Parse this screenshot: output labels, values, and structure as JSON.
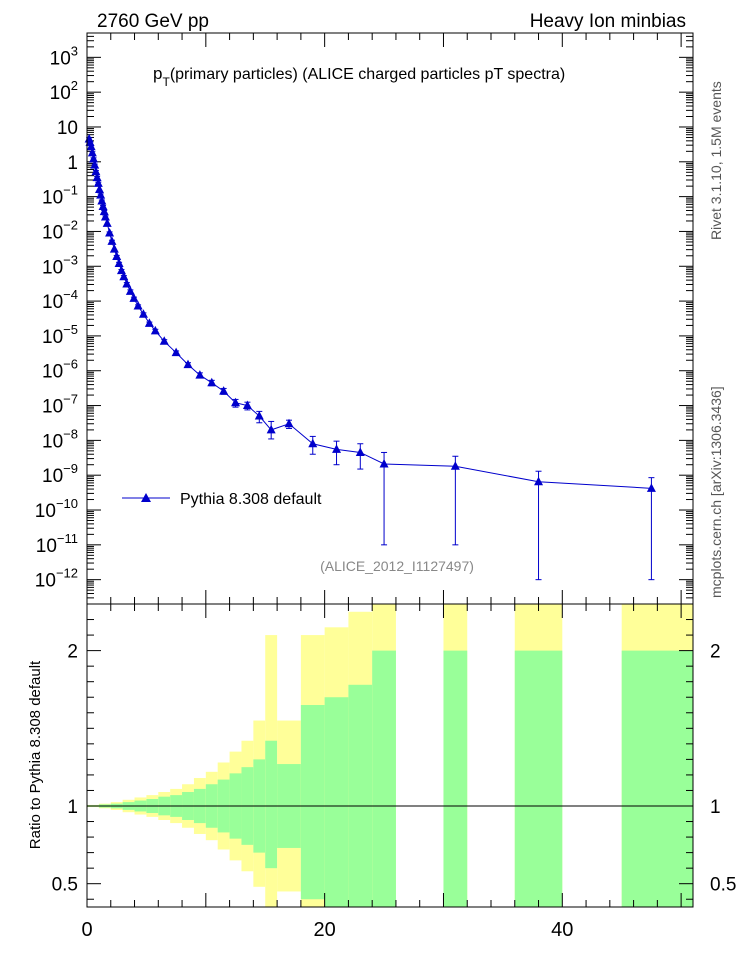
{
  "header": {
    "left_label": "2760 GeV pp",
    "right_label": "Heavy Ion minbias"
  },
  "side_labels": {
    "rivet": "Rivet 3.1.10,  1.5M events",
    "source": "mcplots.cern.ch [arXiv:1306.3436]"
  },
  "chart_data": [
    {
      "type": "line",
      "title_p": "p",
      "title_sub": "T",
      "title_rest": "(primary particles) (ALICE charged particles pT spectra)",
      "analysis_label": "(ALICE_2012_I1127497)",
      "y_scale": "log",
      "xlim": [
        0,
        51
      ],
      "ylim": [
        2e-13,
        5000
      ],
      "legend_position": "lower-left",
      "series": [
        {
          "name": "Pythia 8.308 default",
          "color": "#0000cc",
          "marker": "triangle",
          "points": [
            {
              "x": 0.18,
              "y": 4.5,
              "err": [
                0.4,
                0.4
              ]
            },
            {
              "x": 0.25,
              "y": 3.6,
              "err": [
                0.3,
                0.3
              ]
            },
            {
              "x": 0.35,
              "y": 2.7,
              "err": [
                0.2,
                0.2
              ]
            },
            {
              "x": 0.45,
              "y": 1.8,
              "err": [
                0.15,
                0.15
              ]
            },
            {
              "x": 0.55,
              "y": 1.2,
              "err": [
                0.1,
                0.1
              ]
            },
            {
              "x": 0.65,
              "y": 0.8,
              "err": [
                0.06,
                0.06
              ]
            },
            {
              "x": 0.75,
              "y": 0.52,
              "err": [
                0.04,
                0.04
              ]
            },
            {
              "x": 0.85,
              "y": 0.35,
              "err": [
                0.03,
                0.03
              ]
            },
            {
              "x": 0.95,
              "y": 0.24,
              "err": [
                0.02,
                0.02
              ]
            },
            {
              "x": 1.05,
              "y": 0.16,
              "err": [
                0.01,
                0.01
              ]
            },
            {
              "x": 1.15,
              "y": 0.11,
              "err": [
                0.01,
                0.01
              ]
            },
            {
              "x": 1.25,
              "y": 0.075,
              "err": [
                0.005,
                0.005
              ]
            },
            {
              "x": 1.35,
              "y": 0.052,
              "err": [
                0.004,
                0.004
              ]
            },
            {
              "x": 1.45,
              "y": 0.037,
              "err": [
                0.003,
                0.003
              ]
            },
            {
              "x": 1.55,
              "y": 0.026,
              "err": [
                0.002,
                0.002
              ]
            },
            {
              "x": 1.7,
              "y": 0.017,
              "err": [
                0.001,
                0.001
              ]
            },
            {
              "x": 1.9,
              "y": 0.009,
              "err": [
                0.0007,
                0.0007
              ]
            },
            {
              "x": 2.1,
              "y": 0.0052,
              "err": [
                0.0004,
                0.0004
              ]
            },
            {
              "x": 2.3,
              "y": 0.0031,
              "err": [
                0.0002,
                0.0002
              ]
            },
            {
              "x": 2.5,
              "y": 0.0019,
              "err": [
                0.00015,
                0.00015
              ]
            },
            {
              "x": 2.7,
              "y": 0.0012,
              "err": [
                0.0001,
                0.0001
              ]
            },
            {
              "x": 2.9,
              "y": 0.00075,
              "err": [
                6e-05,
                6e-05
              ]
            },
            {
              "x": 3.1,
              "y": 0.0005,
              "err": [
                4e-05,
                4e-05
              ]
            },
            {
              "x": 3.35,
              "y": 0.00031,
              "err": [
                3e-05,
                3e-05
              ]
            },
            {
              "x": 3.65,
              "y": 0.00019,
              "err": [
                2e-05,
                2e-05
              ]
            },
            {
              "x": 3.95,
              "y": 0.00012,
              "err": [
                1e-05,
                1e-05
              ]
            },
            {
              "x": 4.3,
              "y": 7.2e-05,
              "err": [
                6e-06,
                6e-06
              ]
            },
            {
              "x": 4.75,
              "y": 4.2e-05,
              "err": [
                4e-06,
                4e-06
              ]
            },
            {
              "x": 5.25,
              "y": 2.3e-05,
              "err": [
                2e-06,
                2e-06
              ]
            },
            {
              "x": 5.75,
              "y": 1.4e-05,
              "err": [
                1.5e-06,
                1.5e-06
              ]
            },
            {
              "x": 6.5,
              "y": 7e-06,
              "err": [
                8e-07,
                8e-07
              ]
            },
            {
              "x": 7.5,
              "y": 3.3e-06,
              "err": [
                4e-07,
                4e-07
              ]
            },
            {
              "x": 8.5,
              "y": 1.5e-06,
              "err": [
                2e-07,
                2e-07
              ]
            },
            {
              "x": 9.5,
              "y": 7.5e-07,
              "err": [
                1.2e-07,
                1.2e-07
              ]
            },
            {
              "x": 10.5,
              "y": 4.5e-07,
              "err": [
                8e-08,
                8e-08
              ]
            },
            {
              "x": 11.5,
              "y": 2.6e-07,
              "err": [
                5e-08,
                5e-08
              ]
            },
            {
              "x": 12.5,
              "y": 1.2e-07,
              "err": [
                3e-08,
                3e-08
              ]
            },
            {
              "x": 13.5,
              "y": 1e-07,
              "err": [
                2.5e-08,
                2.5e-08
              ]
            },
            {
              "x": 14.5,
              "y": 5e-08,
              "err": [
                1.8e-08,
                1.8e-08
              ]
            },
            {
              "x": 15.5,
              "y": 2e-08,
              "err": [
                9e-09,
                1.5e-08
              ]
            },
            {
              "x": 17.0,
              "y": 3e-08,
              "err": [
                8e-09,
                8e-09
              ]
            },
            {
              "x": 19.0,
              "y": 8e-09,
              "err": [
                4e-09,
                5e-09
              ]
            },
            {
              "x": 21.0,
              "y": 5.5e-09,
              "err": [
                3.5e-09,
                4e-09
              ]
            },
            {
              "x": 23.0,
              "y": 4.5e-09,
              "err": [
                3e-09,
                3.5e-09
              ]
            },
            {
              "x": 25.0,
              "y": 2.1e-09,
              "err": [
                2.09e-09,
                2.4e-09
              ]
            },
            {
              "x": 31.0,
              "y": 1.8e-09,
              "err": [
                1.79e-09,
                1.7e-09
              ]
            },
            {
              "x": 38.0,
              "y": 6.5e-10,
              "err": [
                6.49e-10,
                6.5e-10
              ]
            },
            {
              "x": 47.5,
              "y": 4.2e-10,
              "err": [
                4.19e-10,
                4.3e-10
              ]
            }
          ]
        }
      ],
      "y_tick_labels": [
        {
          "value": 1e-12,
          "mantissa": "10",
          "exp": "−12"
        },
        {
          "value": 1e-11,
          "mantissa": "10",
          "exp": "−11"
        },
        {
          "value": 1e-10,
          "mantissa": "10",
          "exp": "−10"
        },
        {
          "value": 1e-09,
          "mantissa": "10",
          "exp": "−9"
        },
        {
          "value": 1e-08,
          "mantissa": "10",
          "exp": "−8"
        },
        {
          "value": 1e-07,
          "mantissa": "10",
          "exp": "−7"
        },
        {
          "value": 1e-06,
          "mantissa": "10",
          "exp": "−6"
        },
        {
          "value": 1e-05,
          "mantissa": "10",
          "exp": "−5"
        },
        {
          "value": 0.0001,
          "mantissa": "10",
          "exp": "−4"
        },
        {
          "value": 0.001,
          "mantissa": "10",
          "exp": "−3"
        },
        {
          "value": 0.01,
          "mantissa": "10",
          "exp": "−2"
        },
        {
          "value": 0.1,
          "mantissa": "10",
          "exp": "−1"
        },
        {
          "value": 1,
          "mantissa": "1",
          "exp": ""
        },
        {
          "value": 10,
          "mantissa": "10",
          "exp": ""
        },
        {
          "value": 100,
          "mantissa": "10",
          "exp": "2"
        },
        {
          "value": 1000,
          "mantissa": "10",
          "exp": "3"
        }
      ]
    },
    {
      "type": "area",
      "ylabel": "Ratio to Pythia 8.308 default",
      "xlim": [
        0,
        51
      ],
      "ylim": [
        0.35,
        2.3
      ],
      "reference_line": 1,
      "x_tick_labels": [
        {
          "value": 0,
          "label": "0"
        },
        {
          "value": 20,
          "label": "20"
        },
        {
          "value": 40,
          "label": "40"
        }
      ],
      "y_tick_labels": [
        {
          "value": 0.5,
          "label": "0.5"
        },
        {
          "value": 1,
          "label": "1"
        },
        {
          "value": 2,
          "label": "2"
        }
      ],
      "bands": [
        {
          "x0": 0.0,
          "x1": 1.0,
          "green": [
            0.995,
            1.005
          ],
          "yellow": [
            0.993,
            1.007
          ]
        },
        {
          "x0": 1.0,
          "x1": 2.0,
          "green": [
            0.99,
            1.01
          ],
          "yellow": [
            0.985,
            1.015
          ]
        },
        {
          "x0": 2.0,
          "x1": 3.0,
          "green": [
            0.985,
            1.015
          ],
          "yellow": [
            0.975,
            1.025
          ]
        },
        {
          "x0": 3.0,
          "x1": 4.0,
          "green": [
            0.975,
            1.025
          ],
          "yellow": [
            0.96,
            1.04
          ]
        },
        {
          "x0": 4.0,
          "x1": 5.0,
          "green": [
            0.965,
            1.035
          ],
          "yellow": [
            0.945,
            1.055
          ]
        },
        {
          "x0": 5.0,
          "x1": 6.0,
          "green": [
            0.955,
            1.045
          ],
          "yellow": [
            0.93,
            1.07
          ]
        },
        {
          "x0": 6.0,
          "x1": 7.0,
          "green": [
            0.94,
            1.06
          ],
          "yellow": [
            0.91,
            1.09
          ]
        },
        {
          "x0": 7.0,
          "x1": 8.0,
          "green": [
            0.93,
            1.07
          ],
          "yellow": [
            0.89,
            1.11
          ]
        },
        {
          "x0": 8.0,
          "x1": 9.0,
          "green": [
            0.91,
            1.09
          ],
          "yellow": [
            0.86,
            1.14
          ]
        },
        {
          "x0": 9.0,
          "x1": 10.0,
          "green": [
            0.89,
            1.11
          ],
          "yellow": [
            0.82,
            1.18
          ]
        },
        {
          "x0": 10.0,
          "x1": 11.0,
          "green": [
            0.86,
            1.14
          ],
          "yellow": [
            0.78,
            1.22
          ]
        },
        {
          "x0": 11.0,
          "x1": 12.0,
          "green": [
            0.83,
            1.17
          ],
          "yellow": [
            0.72,
            1.28
          ]
        },
        {
          "x0": 12.0,
          "x1": 13.0,
          "green": [
            0.79,
            1.21
          ],
          "yellow": [
            0.65,
            1.35
          ]
        },
        {
          "x0": 13.0,
          "x1": 14.0,
          "green": [
            0.75,
            1.25
          ],
          "yellow": [
            0.58,
            1.42
          ]
        },
        {
          "x0": 14.0,
          "x1": 15.0,
          "green": [
            0.7,
            1.3
          ],
          "yellow": [
            0.48,
            1.55
          ]
        },
        {
          "x0": 15.0,
          "x1": 16.0,
          "green": [
            0.6,
            1.42
          ],
          "yellow": [
            0.3,
            2.1
          ]
        },
        {
          "x0": 16.0,
          "x1": 18.0,
          "green": [
            0.73,
            1.27
          ],
          "yellow": [
            0.45,
            1.55
          ]
        },
        {
          "x0": 18.0,
          "x1": 20.0,
          "green": [
            0.4,
            1.65
          ],
          "yellow": [
            0.3,
            2.1
          ]
        },
        {
          "x0": 20.0,
          "x1": 22.0,
          "green": [
            0.35,
            1.7
          ],
          "yellow": [
            0.3,
            2.15
          ]
        },
        {
          "x0": 22.0,
          "x1": 24.0,
          "green": [
            0.35,
            1.78
          ],
          "yellow": [
            0.3,
            2.25
          ]
        },
        {
          "x0": 24.0,
          "x1": 26.0,
          "green": [
            0.3,
            2.0
          ],
          "yellow": [
            0.3,
            2.35
          ]
        },
        {
          "x0": 30.0,
          "x1": 32.0,
          "green": [
            0.3,
            2.0
          ],
          "yellow": [
            0.3,
            2.35
          ]
        },
        {
          "x0": 36.0,
          "x1": 40.0,
          "green": [
            0.3,
            2.0
          ],
          "yellow": [
            0.3,
            2.35
          ]
        },
        {
          "x0": 45.0,
          "x1": 51.0,
          "green": [
            0.3,
            2.0
          ],
          "yellow": [
            0.3,
            2.35
          ]
        }
      ]
    }
  ]
}
